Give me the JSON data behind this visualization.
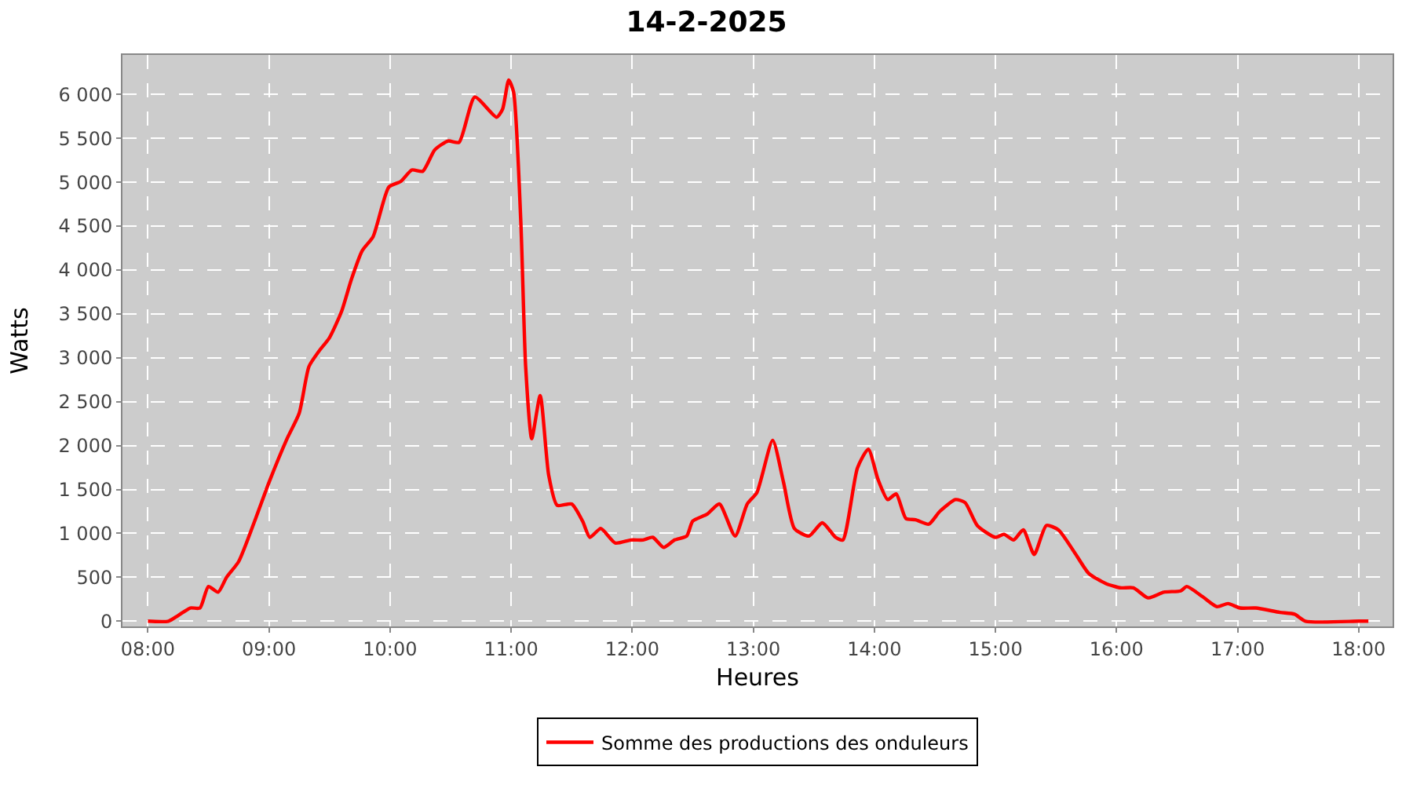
{
  "chart_data": {
    "type": "line",
    "title": "14-2-2025",
    "xlabel": "Heures",
    "ylabel": "Watts",
    "xlim": [
      7.79,
      18.28
    ],
    "ylim": [
      -60,
      6450
    ],
    "xticks": [
      {
        "value": 8,
        "label": "08:00"
      },
      {
        "value": 9,
        "label": "09:00"
      },
      {
        "value": 10,
        "label": "10:00"
      },
      {
        "value": 11,
        "label": "11:00"
      },
      {
        "value": 12,
        "label": "12:00"
      },
      {
        "value": 13,
        "label": "13:00"
      },
      {
        "value": 14,
        "label": "14:00"
      },
      {
        "value": 15,
        "label": "15:00"
      },
      {
        "value": 16,
        "label": "16:00"
      },
      {
        "value": 17,
        "label": "17:00"
      },
      {
        "value": 18,
        "label": "18:00"
      }
    ],
    "yticks": [
      0,
      500,
      {
        "value": 1000,
        "label": "1 000"
      },
      {
        "value": 1500,
        "label": "1 500"
      },
      {
        "value": 2000,
        "label": "2 000"
      },
      {
        "value": 2500,
        "label": "2 500"
      },
      {
        "value": 3000,
        "label": "3 000"
      },
      {
        "value": 3500,
        "label": "3 500"
      },
      {
        "value": 4000,
        "label": "4 000"
      },
      {
        "value": 4500,
        "label": "4 500"
      },
      {
        "value": 5000,
        "label": "5 000"
      },
      {
        "value": 5500,
        "label": "5 500"
      },
      {
        "value": 6000,
        "label": "6 000"
      }
    ],
    "grid": true,
    "legend": "bottom",
    "line_style": "solid",
    "series": [
      {
        "name": "Somme des productions des onduleurs",
        "color": "#ff0000",
        "x": [
          8.0,
          8.17,
          8.25,
          8.35,
          8.43,
          8.5,
          8.58,
          8.65,
          8.75,
          8.89,
          9.0,
          9.15,
          9.25,
          9.33,
          9.41,
          9.5,
          9.6,
          9.68,
          9.77,
          9.86,
          9.99,
          10.09,
          10.18,
          10.27,
          10.37,
          10.48,
          10.57,
          10.7,
          10.88,
          10.93,
          10.98,
          11.02,
          11.08,
          11.12,
          11.17,
          11.24,
          11.31,
          11.38,
          11.5,
          11.59,
          11.65,
          11.74,
          11.86,
          11.99,
          12.09,
          12.17,
          12.26,
          12.35,
          12.45,
          12.5,
          12.62,
          12.72,
          12.85,
          12.95,
          13.03,
          13.16,
          13.25,
          13.34,
          13.46,
          13.57,
          13.68,
          13.74,
          13.86,
          13.95,
          14.03,
          14.11,
          14.18,
          14.26,
          14.34,
          14.45,
          14.54,
          14.67,
          14.75,
          14.85,
          15.0,
          15.07,
          15.15,
          15.23,
          15.32,
          15.42,
          15.52,
          15.65,
          15.77,
          15.91,
          16.03,
          16.14,
          16.26,
          16.39,
          16.53,
          16.58,
          16.71,
          16.83,
          16.92,
          17.02,
          17.15,
          17.35,
          17.47,
          17.56,
          18.0,
          18.08
        ],
        "values": [
          0,
          0,
          65,
          150,
          150,
          395,
          330,
          500,
          680,
          1170,
          1580,
          2080,
          2370,
          2900,
          3070,
          3230,
          3530,
          3890,
          4220,
          4380,
          4945,
          5010,
          5140,
          5125,
          5370,
          5470,
          5455,
          5970,
          5740,
          5835,
          6165,
          6030,
          4550,
          2900,
          2080,
          2570,
          1665,
          1320,
          1335,
          1140,
          955,
          1055,
          890,
          925,
          925,
          955,
          840,
          925,
          970,
          1140,
          1220,
          1335,
          970,
          1335,
          1465,
          2060,
          1580,
          1055,
          970,
          1120,
          955,
          925,
          1745,
          1960,
          1615,
          1385,
          1450,
          1170,
          1155,
          1105,
          1250,
          1385,
          1350,
          1090,
          955,
          990,
          925,
          1040,
          760,
          1090,
          1040,
          790,
          545,
          430,
          380,
          380,
          265,
          330,
          345,
          395,
          280,
          165,
          200,
          150,
          150,
          100,
          80,
          0,
          0,
          0
        ]
      }
    ]
  }
}
